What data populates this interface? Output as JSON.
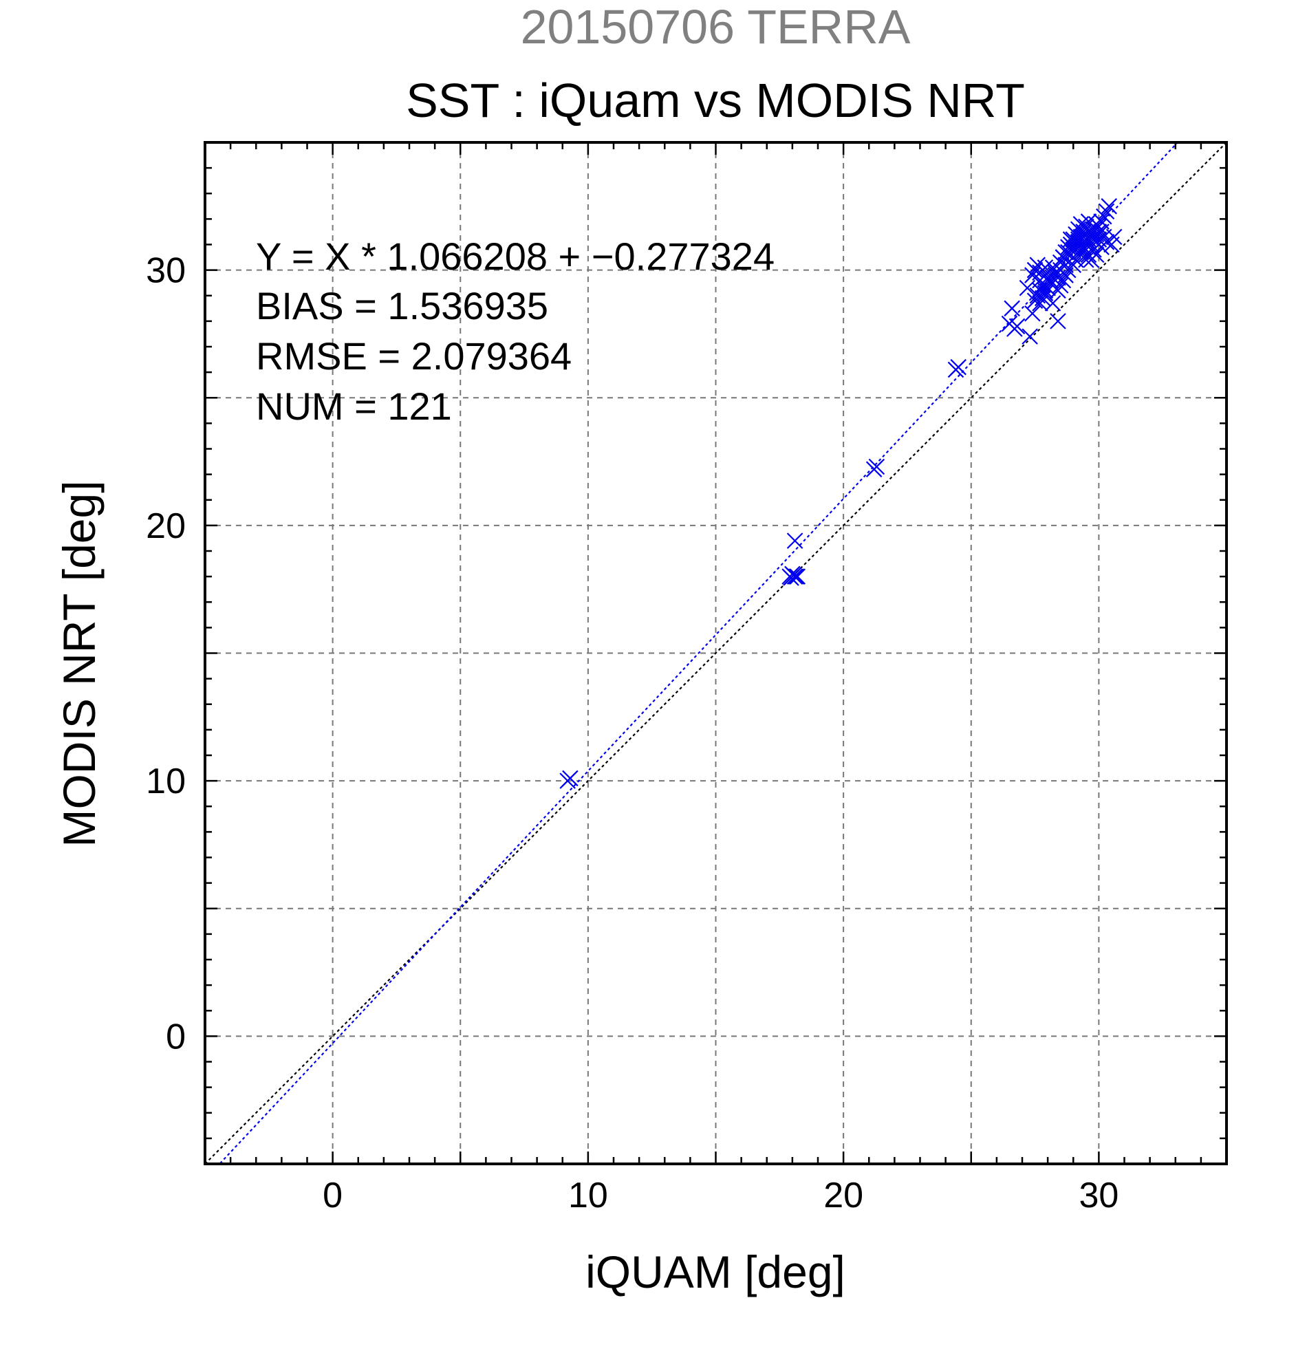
{
  "chart_data": {
    "type": "scatter",
    "suptitle": "20150706 TERRA",
    "title": "SST : iQuam vs MODIS NRT",
    "xlabel": "iQUAM [deg]",
    "ylabel": "MODIS NRT [deg]",
    "xlim": [
      -5,
      35
    ],
    "ylim": [
      -5,
      35
    ],
    "xticks": [
      "0",
      "10",
      "20",
      "30"
    ],
    "yticks": [
      "0",
      "10",
      "20",
      "30"
    ],
    "grid": true,
    "annotations": {
      "fit": "Y = X * 1.066208 + −0.277324",
      "bias": "BIAS = 1.536935",
      "rmse": "RMSE = 2.079364",
      "num": "NUM = 121"
    },
    "fit_line": {
      "slope": 1.066208,
      "intercept": -0.277324,
      "color": "#0000ee",
      "style": "dotted"
    },
    "reference_line": {
      "slope": 1,
      "intercept": 0,
      "color": "#000000",
      "style": "dotted"
    },
    "marker": "x",
    "marker_color": "#0000ee",
    "series": [
      {
        "x": [
          9.2,
          9.3,
          17.9,
          18.0,
          18.1,
          18.2,
          17.95,
          18.05,
          18.15,
          18.1,
          21.2,
          21.3,
          24.4,
          24.5,
          26.6,
          26.5,
          26.8,
          26.7,
          27.3,
          27.2,
          27.6,
          27.5,
          27.4,
          27.7,
          27.8,
          27.9,
          27.6,
          27.5,
          27.7,
          27.8,
          27.9,
          28.0,
          28.1,
          28.0,
          27.9,
          28.2,
          28.3,
          28.4,
          28.1,
          28.5,
          28.6,
          28.7,
          28.8,
          28.2,
          27.4,
          28.4,
          28.9,
          29.0,
          29.1,
          29.2,
          29.3,
          29.0,
          28.9,
          29.1,
          29.2,
          29.3,
          29.4,
          29.5,
          29.6,
          29.4,
          29.3,
          29.5,
          29.6,
          29.7,
          29.8,
          29.9,
          30.0,
          29.7,
          29.8,
          29.9,
          30.0,
          30.1,
          30.2,
          30.3,
          30.1,
          29.6,
          29.5,
          29.4,
          29.3,
          29.2,
          29.1,
          29.0,
          28.8,
          28.7,
          28.6,
          28.5,
          28.4,
          28.3,
          28.2,
          28.1,
          28.0,
          27.9,
          27.8,
          27.7,
          29.8,
          29.9,
          30.0,
          30.1,
          30.2,
          29.6,
          29.4,
          29.2,
          29.0,
          28.8,
          28.6,
          30.4,
          30.5,
          30.3,
          30.6,
          29.7,
          29.5,
          29.3,
          29.1,
          28.9,
          28.7,
          28.5,
          28.3,
          28.1,
          27.9,
          27.7,
          27.5
        ],
        "y": [
          10.0,
          10.1,
          18.0,
          18.1,
          18.0,
          18.0,
          17.95,
          18.05,
          18.0,
          19.4,
          22.2,
          22.3,
          26.1,
          26.2,
          28.5,
          27.9,
          27.8,
          27.7,
          27.4,
          29.3,
          30.2,
          30.0,
          29.8,
          29.6,
          29.4,
          29.2,
          29.0,
          28.8,
          29.9,
          30.0,
          30.1,
          29.7,
          29.5,
          29.3,
          29.1,
          30.1,
          29.9,
          29.7,
          29.5,
          30.3,
          30.5,
          30.7,
          30.9,
          28.7,
          28.3,
          28.0,
          31.0,
          31.2,
          31.4,
          31.6,
          31.8,
          30.8,
          30.6,
          30.9,
          31.1,
          31.3,
          31.5,
          31.7,
          31.9,
          30.9,
          30.7,
          31.0,
          31.2,
          31.4,
          31.6,
          31.8,
          31.5,
          31.0,
          31.2,
          31.4,
          31.2,
          31.5,
          31.3,
          31.1,
          30.9,
          30.6,
          30.4,
          30.8,
          31.0,
          31.2,
          30.4,
          30.2,
          30.0,
          29.8,
          29.6,
          29.4,
          29.2,
          29.9,
          29.7,
          29.5,
          29.3,
          29.1,
          28.9,
          28.7,
          30.8,
          30.6,
          31.7,
          31.9,
          32.1,
          31.5,
          31.3,
          31.1,
          30.9,
          30.7,
          30.5,
          32.5,
          31.0,
          32.3,
          31.3,
          30.4,
          30.6,
          30.8,
          31.0,
          31.2,
          30.2,
          30.0,
          29.8,
          29.6,
          29.4,
          29.2,
          30.0
        ]
      }
    ]
  }
}
